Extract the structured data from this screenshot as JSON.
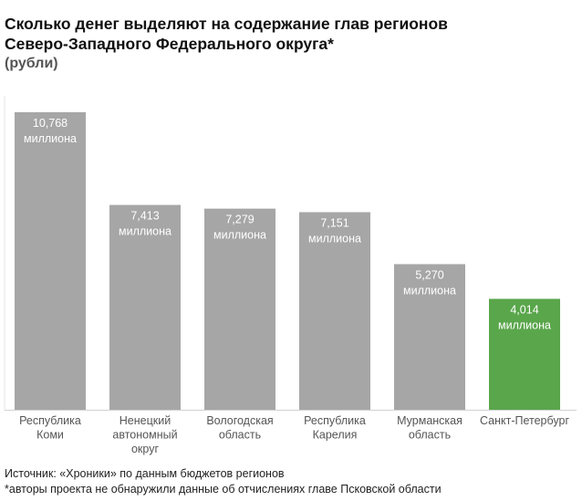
{
  "chart_data": {
    "type": "bar",
    "title_lines": [
      "Сколько денег выделяют на содержание глав регионов",
      "Северо-Западного Федерального округа*"
    ],
    "subtitle": "(рубли)",
    "categories": [
      [
        "Республика",
        "Коми"
      ],
      [
        "Ненецкий",
        "автономный",
        "округ"
      ],
      [
        "Вологодская",
        "область"
      ],
      [
        "Республика",
        "Карелия"
      ],
      [
        "Мурманская",
        "область"
      ],
      [
        "Санкт-Петербург"
      ]
    ],
    "values": [
      10.768,
      7.413,
      7.279,
      7.151,
      5.27,
      4.014
    ],
    "value_labels": [
      "10,768",
      "7,413",
      "7,279",
      "7,151",
      "5,270",
      "4,014"
    ],
    "unit_label": "миллиона",
    "colors": [
      "#a6a6a6",
      "#a6a6a6",
      "#a6a6a6",
      "#a6a6a6",
      "#a6a6a6",
      "#5aa64b"
    ],
    "ylim": [
      0,
      10.768
    ],
    "xlabel": "",
    "ylabel": ""
  },
  "footer": {
    "source": "Источник: «Хроники» по данным бюджетов регионов",
    "note": "*авторы проекта не обнаружили данные об отчислениях главе Псковской области"
  }
}
